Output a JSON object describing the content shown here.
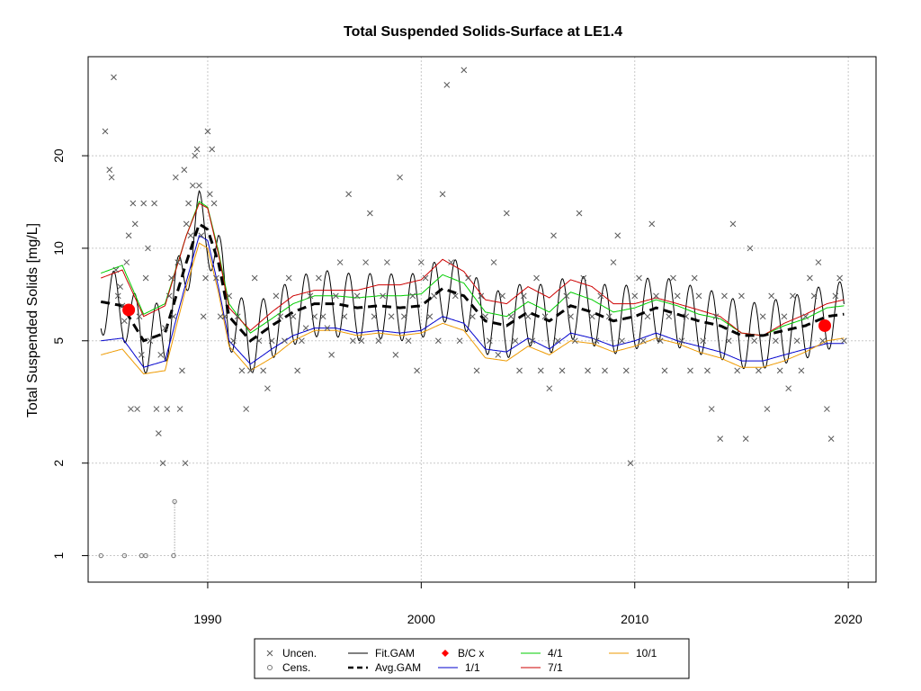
{
  "chart_data": {
    "type": "scatter",
    "title": "Total Suspended Solids-Surface at LE1.4",
    "xlabel": "",
    "ylabel": "Total Suspended Solids [mg/L]",
    "y_scale": "log",
    "xlim": [
      1984.4,
      2021.3
    ],
    "ylim": [
      0.82,
      42
    ],
    "x_ticks": [
      1990,
      2000,
      2010,
      2020
    ],
    "y_ticks": [
      1,
      2,
      5,
      10,
      20
    ],
    "grid": true,
    "legend_position": "bottom-center",
    "legend": [
      {
        "key": "uncen",
        "label": "Uncen.",
        "color": "#5a5a5a"
      },
      {
        "key": "cens",
        "label": "Cens.",
        "color": "#777777"
      },
      {
        "key": "fit",
        "label": "Fit.GAM",
        "color": "#000000"
      },
      {
        "key": "avg",
        "label": "Avg.GAM",
        "color": "#000000"
      },
      {
        "key": "bc",
        "label": "B/C x",
        "color": "#ff0000"
      },
      {
        "key": "s11",
        "label": "1/1",
        "color": "#0000cd"
      },
      {
        "key": "s41",
        "label": "4/1",
        "color": "#00cd00"
      },
      {
        "key": "s71",
        "label": "7/1",
        "color": "#cd0000"
      },
      {
        "key": "s101",
        "label": "10/1",
        "color": "#ee9a00"
      }
    ],
    "uncensored_points": [
      [
        1985.2,
        24
      ],
      [
        1985.4,
        18
      ],
      [
        1985.5,
        17
      ],
      [
        1985.6,
        36
      ],
      [
        1985.7,
        8.5
      ],
      [
        1985.8,
        7
      ],
      [
        1985.9,
        7.5
      ],
      [
        1986.0,
        6.5
      ],
      [
        1986.1,
        5.8
      ],
      [
        1986.2,
        9
      ],
      [
        1986.3,
        11
      ],
      [
        1986.4,
        3
      ],
      [
        1986.5,
        14
      ],
      [
        1986.6,
        12
      ],
      [
        1986.7,
        3
      ],
      [
        1986.8,
        6
      ],
      [
        1986.9,
        4.5
      ],
      [
        1987.0,
        14
      ],
      [
        1987.1,
        8
      ],
      [
        1987.2,
        10
      ],
      [
        1987.3,
        5
      ],
      [
        1987.5,
        14
      ],
      [
        1987.6,
        3
      ],
      [
        1987.7,
        2.5
      ],
      [
        1987.8,
        4.5
      ],
      [
        1987.9,
        2
      ],
      [
        1988.0,
        5.5
      ],
      [
        1988.1,
        3
      ],
      [
        1988.2,
        7
      ],
      [
        1988.3,
        8
      ],
      [
        1988.4,
        6
      ],
      [
        1988.5,
        17
      ],
      [
        1988.6,
        9
      ],
      [
        1988.7,
        3
      ],
      [
        1988.8,
        4
      ],
      [
        1988.9,
        18
      ],
      [
        1988.95,
        2
      ],
      [
        1989.0,
        12
      ],
      [
        1989.1,
        14
      ],
      [
        1989.2,
        11
      ],
      [
        1989.3,
        16
      ],
      [
        1989.4,
        20
      ],
      [
        1989.5,
        21
      ],
      [
        1989.6,
        16
      ],
      [
        1989.7,
        11
      ],
      [
        1989.8,
        6
      ],
      [
        1989.9,
        8
      ],
      [
        1990.0,
        24
      ],
      [
        1990.1,
        15
      ],
      [
        1990.2,
        21
      ],
      [
        1990.3,
        14
      ],
      [
        1990.4,
        8
      ],
      [
        1990.6,
        6
      ],
      [
        1990.8,
        6
      ],
      [
        1991.0,
        7
      ],
      [
        1991.2,
        5
      ],
      [
        1991.4,
        6
      ],
      [
        1991.6,
        4
      ],
      [
        1991.8,
        3
      ],
      [
        1992.0,
        4
      ],
      [
        1992.2,
        8
      ],
      [
        1992.4,
        5
      ],
      [
        1992.6,
        4
      ],
      [
        1992.8,
        3.5
      ],
      [
        1993.0,
        5
      ],
      [
        1993.2,
        7
      ],
      [
        1993.4,
        6
      ],
      [
        1993.6,
        5
      ],
      [
        1993.8,
        8
      ],
      [
        1994.0,
        6
      ],
      [
        1994.2,
        4
      ],
      [
        1994.4,
        5
      ],
      [
        1994.6,
        5.5
      ],
      [
        1994.8,
        7
      ],
      [
        1995.0,
        6
      ],
      [
        1995.2,
        8
      ],
      [
        1995.4,
        6
      ],
      [
        1995.6,
        5.5
      ],
      [
        1995.8,
        4.5
      ],
      [
        1996.0,
        7
      ],
      [
        1996.2,
        9
      ],
      [
        1996.4,
        6
      ],
      [
        1996.6,
        15
      ],
      [
        1996.8,
        5
      ],
      [
        1997.0,
        7
      ],
      [
        1997.2,
        5
      ],
      [
        1997.4,
        9
      ],
      [
        1997.6,
        13
      ],
      [
        1997.8,
        6
      ],
      [
        1998.0,
        5
      ],
      [
        1998.2,
        7
      ],
      [
        1998.4,
        9
      ],
      [
        1998.6,
        6
      ],
      [
        1998.8,
        4.5
      ],
      [
        1999.0,
        17
      ],
      [
        1999.2,
        6
      ],
      [
        1999.4,
        5
      ],
      [
        1999.6,
        7
      ],
      [
        1999.8,
        4
      ],
      [
        2000.0,
        9
      ],
      [
        2000.2,
        8
      ],
      [
        2000.4,
        6
      ],
      [
        2000.6,
        7
      ],
      [
        2000.8,
        5
      ],
      [
        2001.0,
        15
      ],
      [
        2001.2,
        34
      ],
      [
        2001.4,
        9
      ],
      [
        2001.6,
        7
      ],
      [
        2001.8,
        5
      ],
      [
        2002.0,
        38
      ],
      [
        2002.2,
        8
      ],
      [
        2002.4,
        6
      ],
      [
        2002.6,
        4
      ],
      [
        2002.8,
        7
      ],
      [
        2003.0,
        6
      ],
      [
        2003.2,
        5
      ],
      [
        2003.4,
        9
      ],
      [
        2003.6,
        4.5
      ],
      [
        2003.8,
        7
      ],
      [
        2004.0,
        13
      ],
      [
        2004.2,
        6
      ],
      [
        2004.4,
        5
      ],
      [
        2004.6,
        4
      ],
      [
        2004.8,
        7
      ],
      [
        2005.0,
        6
      ],
      [
        2005.2,
        5
      ],
      [
        2005.4,
        8
      ],
      [
        2005.6,
        4
      ],
      [
        2005.8,
        6
      ],
      [
        2006.0,
        3.5
      ],
      [
        2006.2,
        11
      ],
      [
        2006.4,
        5
      ],
      [
        2006.6,
        4
      ],
      [
        2006.8,
        7
      ],
      [
        2007.0,
        6
      ],
      [
        2007.2,
        5
      ],
      [
        2007.4,
        13
      ],
      [
        2007.6,
        8
      ],
      [
        2007.8,
        4
      ],
      [
        2008.0,
        6
      ],
      [
        2008.2,
        5
      ],
      [
        2008.4,
        7
      ],
      [
        2008.6,
        4
      ],
      [
        2008.8,
        6
      ],
      [
        2009.0,
        9
      ],
      [
        2009.2,
        11
      ],
      [
        2009.4,
        5
      ],
      [
        2009.6,
        4
      ],
      [
        2009.8,
        2
      ],
      [
        2010.0,
        7
      ],
      [
        2010.2,
        8
      ],
      [
        2010.4,
        5
      ],
      [
        2010.6,
        6
      ],
      [
        2010.8,
        12
      ],
      [
        2011.0,
        7
      ],
      [
        2011.2,
        5
      ],
      [
        2011.4,
        4
      ],
      [
        2011.6,
        6
      ],
      [
        2011.8,
        8
      ],
      [
        2012.0,
        7
      ],
      [
        2012.2,
        5
      ],
      [
        2012.4,
        6
      ],
      [
        2012.6,
        4
      ],
      [
        2012.8,
        8
      ],
      [
        2013.0,
        7
      ],
      [
        2013.2,
        5
      ],
      [
        2013.4,
        4
      ],
      [
        2013.6,
        3
      ],
      [
        2013.8,
        6
      ],
      [
        2014.0,
        2.4
      ],
      [
        2014.2,
        7
      ],
      [
        2014.4,
        5
      ],
      [
        2014.6,
        12
      ],
      [
        2014.8,
        4
      ],
      [
        2015.0,
        7
      ],
      [
        2015.2,
        2.4
      ],
      [
        2015.4,
        10
      ],
      [
        2015.6,
        5
      ],
      [
        2015.8,
        4
      ],
      [
        2016.0,
        6
      ],
      [
        2016.2,
        3
      ],
      [
        2016.4,
        7
      ],
      [
        2016.6,
        5
      ],
      [
        2016.8,
        4
      ],
      [
        2017.0,
        6
      ],
      [
        2017.2,
        3.5
      ],
      [
        2017.4,
        7
      ],
      [
        2017.6,
        5
      ],
      [
        2017.8,
        4
      ],
      [
        2018.0,
        6
      ],
      [
        2018.2,
        8
      ],
      [
        2018.4,
        7
      ],
      [
        2018.6,
        9
      ],
      [
        2018.8,
        5
      ],
      [
        2019.0,
        3
      ],
      [
        2019.2,
        2.4
      ],
      [
        2019.4,
        7
      ],
      [
        2019.6,
        8
      ],
      [
        2019.8,
        5
      ]
    ],
    "censored_points": [
      [
        1985.0,
        1
      ],
      [
        1986.1,
        1
      ],
      [
        1986.9,
        1
      ],
      [
        1987.1,
        1
      ],
      [
        1988.4,
        1
      ],
      [
        1988.45,
        1.5
      ]
    ],
    "bc_points": [
      [
        1986.3,
        6.3
      ],
      [
        2018.9,
        5.6
      ]
    ],
    "series": [
      {
        "name": "Avg.GAM",
        "key": "avg",
        "x": [
          1985,
          1986,
          1987,
          1988,
          1989,
          1989.6,
          1990,
          1990.5,
          1991,
          1992,
          1993,
          1994,
          1995,
          1996,
          1997,
          1998,
          1999,
          2000,
          2001,
          2002,
          2003,
          2004,
          2005,
          2006,
          2007,
          2008,
          2009,
          2010,
          2011,
          2012,
          2013,
          2014,
          2015,
          2016,
          2017,
          2018,
          2019,
          2019.8
        ],
        "y": [
          6.7,
          6.5,
          5.0,
          5.3,
          9.0,
          12.0,
          11.5,
          9.0,
          6.0,
          5.0,
          5.6,
          6.2,
          6.6,
          6.6,
          6.4,
          6.5,
          6.4,
          6.5,
          7.4,
          7.0,
          5.8,
          5.6,
          6.2,
          5.8,
          6.5,
          6.2,
          5.8,
          6.0,
          6.4,
          6.1,
          5.8,
          5.6,
          5.2,
          5.2,
          5.4,
          5.6,
          6.0,
          6.1
        ]
      },
      {
        "name": "1/1",
        "key": "s11",
        "x": [
          1985,
          1986,
          1987,
          1988,
          1989,
          1989.6,
          1990,
          1990.5,
          1991,
          1992,
          1993,
          1994,
          1995,
          1996,
          1997,
          1998,
          1999,
          2000,
          2001,
          2002,
          2003,
          2004,
          2005,
          2006,
          2007,
          2008,
          2009,
          2010,
          2011,
          2012,
          2013,
          2014,
          2015,
          2016,
          2017,
          2018,
          2019,
          2019.8
        ],
        "y": [
          5.0,
          5.1,
          4.1,
          4.3,
          7.8,
          11.0,
          10.6,
          7.5,
          5.0,
          4.2,
          4.7,
          5.2,
          5.5,
          5.5,
          5.3,
          5.4,
          5.3,
          5.4,
          6.0,
          5.7,
          4.7,
          4.6,
          5.1,
          4.7,
          5.3,
          5.1,
          4.8,
          5.0,
          5.3,
          5.0,
          4.8,
          4.6,
          4.3,
          4.3,
          4.5,
          4.7,
          4.9,
          4.9
        ]
      },
      {
        "name": "4/1",
        "key": "s41",
        "x": [
          1985,
          1986,
          1987,
          1988,
          1989,
          1989.6,
          1990,
          1990.5,
          1991,
          1992,
          1993,
          1994,
          1995,
          1996,
          1997,
          1998,
          1999,
          2000,
          2001,
          2002,
          2003,
          2004,
          2005,
          2006,
          2007,
          2008,
          2009,
          2010,
          2011,
          2012,
          2013,
          2014,
          2015,
          2016,
          2017,
          2018,
          2019,
          2019.8
        ],
        "y": [
          8.3,
          8.8,
          6.1,
          6.6,
          11.0,
          14.2,
          13.6,
          9.8,
          6.6,
          5.3,
          5.9,
          6.6,
          7.0,
          7.0,
          6.9,
          7.0,
          7.0,
          7.1,
          8.2,
          7.7,
          6.2,
          6.0,
          6.7,
          6.2,
          7.2,
          6.8,
          6.2,
          6.4,
          6.8,
          6.5,
          6.1,
          5.9,
          5.3,
          5.2,
          5.6,
          5.9,
          6.4,
          6.5
        ]
      },
      {
        "name": "7/1",
        "key": "s71",
        "x": [
          1985,
          1986,
          1987,
          1988,
          1989,
          1989.6,
          1990,
          1990.5,
          1991,
          1992,
          1993,
          1994,
          1995,
          1996,
          1997,
          1998,
          1999,
          2000,
          2001,
          2002,
          2003,
          2004,
          2005,
          2006,
          2007,
          2008,
          2009,
          2010,
          2011,
          2012,
          2013,
          2014,
          2015,
          2016,
          2017,
          2018,
          2019,
          2019.8
        ],
        "y": [
          8.0,
          8.5,
          6.0,
          6.5,
          11.0,
          14.0,
          13.5,
          9.6,
          6.4,
          5.4,
          6.2,
          7.0,
          7.3,
          7.3,
          7.3,
          7.6,
          7.6,
          7.9,
          9.2,
          8.4,
          6.8,
          6.6,
          7.5,
          6.9,
          7.9,
          7.5,
          6.6,
          6.6,
          6.9,
          6.6,
          6.3,
          6.0,
          5.3,
          5.2,
          5.7,
          6.1,
          6.6,
          6.8
        ]
      },
      {
        "name": "10/1",
        "key": "s101",
        "x": [
          1985,
          1986,
          1987,
          1988,
          1989,
          1989.6,
          1990,
          1990.5,
          1991,
          1992,
          1993,
          1994,
          1995,
          1996,
          1997,
          1998,
          1999,
          2000,
          2001,
          2002,
          2003,
          2004,
          2005,
          2006,
          2007,
          2008,
          2009,
          2010,
          2011,
          2012,
          2013,
          2014,
          2015,
          2016,
          2017,
          2018,
          2019,
          2019.8
        ],
        "y": [
          4.5,
          4.7,
          3.9,
          4.0,
          7.5,
          10.4,
          10.0,
          7.2,
          4.8,
          4.0,
          4.4,
          5.0,
          5.4,
          5.4,
          5.2,
          5.3,
          5.2,
          5.3,
          5.7,
          5.4,
          4.4,
          4.3,
          4.8,
          4.5,
          5.0,
          4.9,
          4.6,
          4.8,
          5.1,
          4.9,
          4.6,
          4.4,
          4.1,
          4.1,
          4.3,
          4.6,
          5.0,
          5.1
        ]
      },
      {
        "name": "Fit.GAM",
        "key": "fit",
        "x": [],
        "y": [],
        "seasonal_amplitude": 0.55,
        "note": "seasonal oscillation about Avg.GAM"
      }
    ]
  }
}
